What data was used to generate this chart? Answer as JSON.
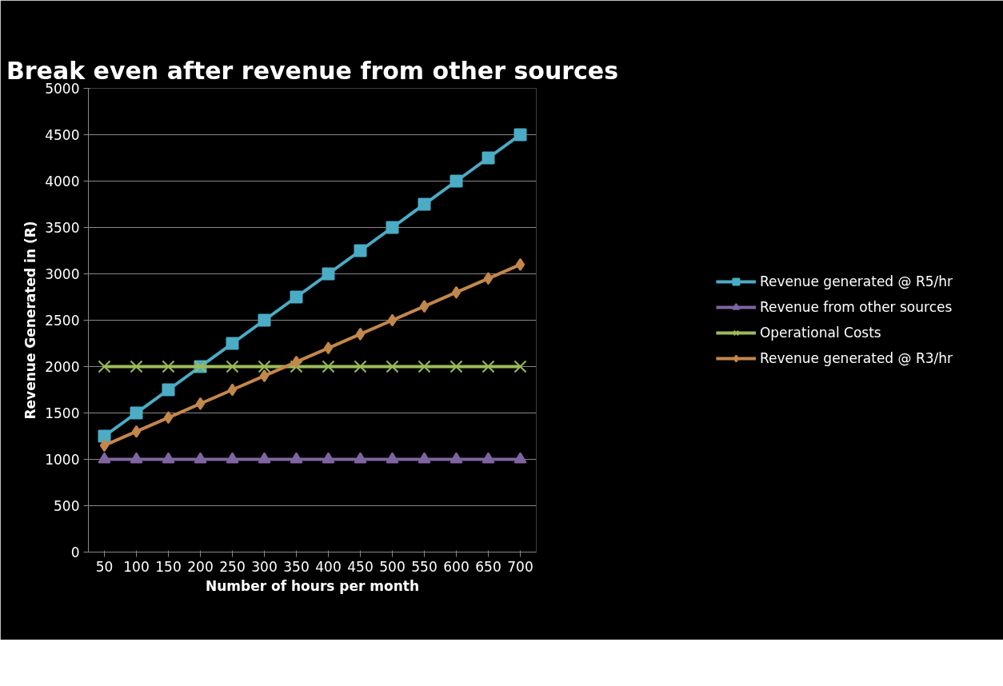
{
  "chart_data": {
    "type": "line",
    "title": "Break even after revenue from other sources",
    "xlabel": "Number of hours per month",
    "ylabel": "Revenue Generated in (R)",
    "categories": [
      "50",
      "100",
      "150",
      "200",
      "250",
      "300",
      "350",
      "400",
      "450",
      "500",
      "550",
      "600",
      "650",
      "700"
    ],
    "series": [
      {
        "name": "Revenue generated @ R5/hr",
        "color": "#4bacc6",
        "marker": "square",
        "values": [
          1250,
          1500,
          1750,
          2000,
          2250,
          2500,
          2750,
          3000,
          3250,
          3500,
          3750,
          4000,
          4250,
          4500
        ]
      },
      {
        "name": "Revenue from other sources",
        "color": "#8064a2",
        "marker": "triangle",
        "values": [
          1000,
          1000,
          1000,
          1000,
          1000,
          1000,
          1000,
          1000,
          1000,
          1000,
          1000,
          1000,
          1000,
          1000
        ]
      },
      {
        "name": "Operational Costs",
        "color": "#9bbb59",
        "marker": "cross",
        "values": [
          2000,
          2000,
          2000,
          2000,
          2000,
          2000,
          2000,
          2000,
          2000,
          2000,
          2000,
          2000,
          2000,
          2000
        ]
      },
      {
        "name": "Revenue generated @ R3/hr",
        "color": "#c2874b",
        "marker": "diamond",
        "values": [
          1150,
          1300,
          1450,
          1600,
          1750,
          1900,
          2050,
          2200,
          2350,
          2500,
          2650,
          2800,
          2950,
          3100
        ]
      }
    ],
    "ylim": [
      0,
      5000
    ],
    "yticks": [
      0,
      500,
      1000,
      1500,
      2000,
      2500,
      3000,
      3500,
      4000,
      4500,
      5000
    ],
    "grid": "y",
    "legend": "right"
  }
}
